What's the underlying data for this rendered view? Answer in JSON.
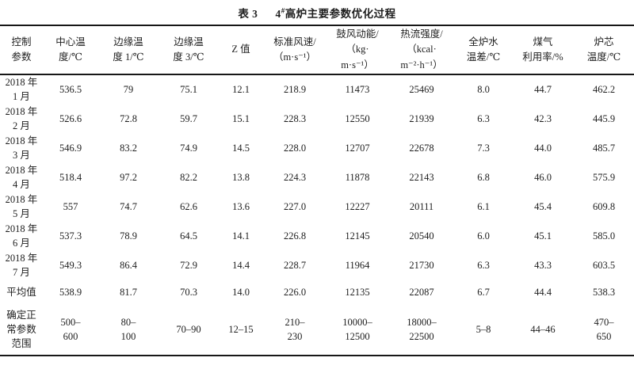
{
  "page": {
    "background_color": "#ffffff",
    "text_color": "#1e1e1e",
    "rule_color": "#171717"
  },
  "title": {
    "table_no": "表 3",
    "name_num": "4",
    "name_sup": "#",
    "name_rest": "高炉主要参数优化过程"
  },
  "table": {
    "columns": [
      {
        "name": "column-header-control-parameter",
        "label": "控制\n参数"
      },
      {
        "name": "column-header-center-temperature",
        "label": "中心温\n度/℃"
      },
      {
        "name": "column-header-edge-temperature-1",
        "label": "边缘温\n度 1/℃"
      },
      {
        "name": "column-header-edge-temperature-3",
        "label": "边缘温\n度 3/℃"
      },
      {
        "name": "column-header-z-value",
        "label": "Z 值"
      },
      {
        "name": "column-header-standard-wind-speed",
        "label": "标准风速/\n（m·s⁻¹）"
      },
      {
        "name": "column-header-blast-kinetic-energy",
        "label": "鼓风动能/\n（kg·\nm·s⁻¹）"
      },
      {
        "name": "column-header-heat-flow-intensity",
        "label": "热流强度/\n（kcal·\nm⁻²·h⁻¹）"
      },
      {
        "name": "column-header-furnace-water-temp-diff",
        "label": "全炉水\n温差/℃"
      },
      {
        "name": "column-header-gas-utilization-rate",
        "label": "煤气\n利用率/%"
      },
      {
        "name": "column-header-furnace-core-temperature",
        "label": "炉芯\n温度/℃"
      }
    ],
    "rows": [
      {
        "kind": "month",
        "label": "2018 年\n1 月",
        "values": [
          "536.5",
          "79",
          "75.1",
          "12.1",
          "218.9",
          "11473",
          "25469",
          "8.0",
          "44.7",
          "462.2"
        ]
      },
      {
        "kind": "month",
        "label": "2018 年\n2 月",
        "values": [
          "526.6",
          "72.8",
          "59.7",
          "15.1",
          "228.3",
          "12550",
          "21939",
          "6.3",
          "42.3",
          "445.9"
        ]
      },
      {
        "kind": "month",
        "label": "2018 年\n3 月",
        "values": [
          "546.9",
          "83.2",
          "74.9",
          "14.5",
          "228.0",
          "12707",
          "22678",
          "7.3",
          "44.0",
          "485.7"
        ]
      },
      {
        "kind": "month",
        "label": "2018 年\n4 月",
        "values": [
          "518.4",
          "97.2",
          "82.2",
          "13.8",
          "224.3",
          "11878",
          "22143",
          "6.8",
          "46.0",
          "575.9"
        ]
      },
      {
        "kind": "month",
        "label": "2018 年\n5 月",
        "values": [
          "557",
          "74.7",
          "62.6",
          "13.6",
          "227.0",
          "12227",
          "20111",
          "6.1",
          "45.4",
          "609.8"
        ]
      },
      {
        "kind": "month",
        "label": "2018 年\n6 月",
        "values": [
          "537.3",
          "78.9",
          "64.5",
          "14.1",
          "226.8",
          "12145",
          "20540",
          "6.0",
          "45.1",
          "585.0"
        ]
      },
      {
        "kind": "month",
        "label": "2018 年\n7 月",
        "values": [
          "549.3",
          "86.4",
          "72.9",
          "14.4",
          "228.7",
          "11964",
          "21730",
          "6.3",
          "43.3",
          "603.5"
        ]
      },
      {
        "kind": "avg",
        "label": "平均值",
        "values": [
          "538.9",
          "81.7",
          "70.3",
          "14.0",
          "226.0",
          "12135",
          "22087",
          "6.7",
          "44.4",
          "538.3"
        ]
      },
      {
        "kind": "range",
        "label": "确定正\n常参数\n范围",
        "values": [
          "500–\n600",
          "80–\n100",
          "70–90",
          "12–15",
          "210–\n230",
          "10000–\n12500",
          "18000–\n22500",
          "5–8",
          "44–46",
          "470–\n650"
        ]
      }
    ]
  }
}
